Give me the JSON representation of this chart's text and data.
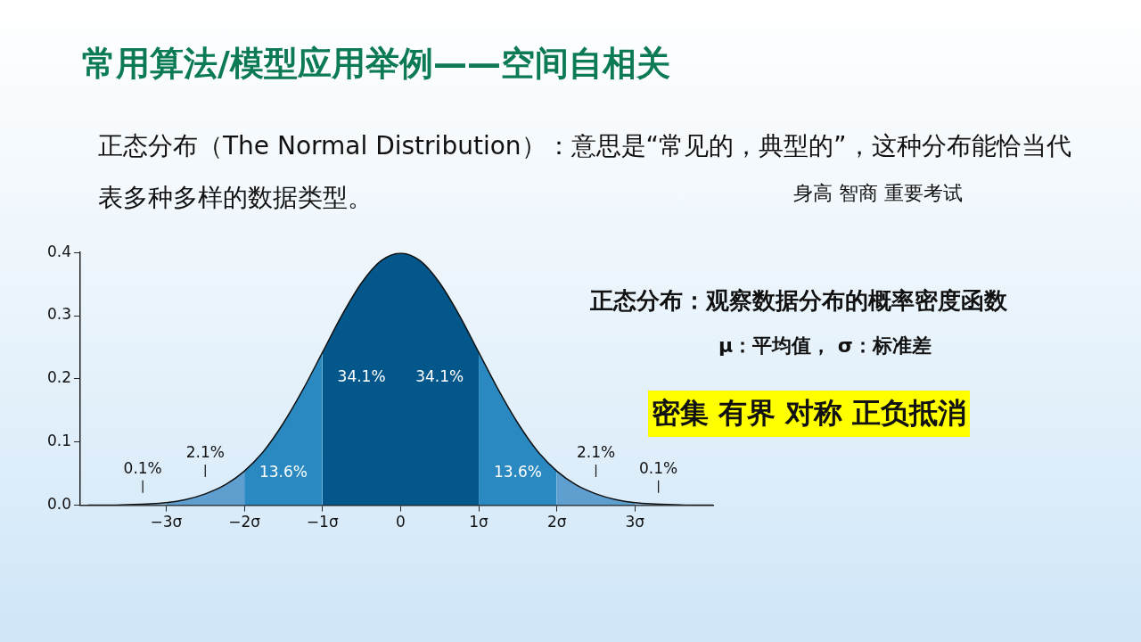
{
  "chart_data": {
    "type": "area",
    "title": "常用算法/模型应用举例——空间自相关",
    "subtitle": "正态分布（The Normal Distribution）：意思是“常见的，典型的”，这种分布能恰当代表多种多样的数据类型。",
    "xlim": [
      -4.1,
      4
    ],
    "ylim": [
      0,
      0.4
    ],
    "xticks": [
      {
        "value": -3,
        "label": "−3σ"
      },
      {
        "value": -2,
        "label": "−2σ"
      },
      {
        "value": -1,
        "label": "−1σ"
      },
      0,
      {
        "value": 1,
        "label": "1σ"
      },
      {
        "value": 2,
        "label": "2σ"
      },
      {
        "value": 3,
        "label": "3σ"
      }
    ],
    "yticks": [
      {
        "value": 0,
        "label": "0.0"
      },
      0.1,
      0.2,
      0.3,
      0.4
    ],
    "grid": false,
    "legend": false,
    "marker": "none",
    "series": [
      {
        "color": "#8fb9dc",
        "x": [
          -4,
          -3.75,
          -3.5,
          -3.25,
          -3
        ],
        "values": [
          0.0,
          0.0,
          0.001,
          0.002,
          0.004
        ]
      },
      {
        "color": "#5f9fd0",
        "x": [
          -3,
          -2.75,
          -2.5,
          -2.25,
          -2
        ],
        "values": [
          0.004,
          0.009,
          0.018,
          0.032,
          0.054
        ]
      },
      {
        "color": "#2a89c0",
        "x": [
          -2,
          -1.75,
          -1.5,
          -1.25,
          -1
        ],
        "values": [
          0.054,
          0.086,
          0.13,
          0.183,
          0.242
        ]
      },
      {
        "color": "#04578b",
        "x": [
          -1,
          -0.75,
          -0.5,
          -0.25,
          0,
          0.25,
          0.5,
          0.75,
          1
        ],
        "values": [
          0.242,
          0.301,
          0.352,
          0.387,
          0.399,
          0.387,
          0.352,
          0.301,
          0.242
        ]
      },
      {
        "color": "#2a89c0",
        "x": [
          1,
          1.25,
          1.5,
          1.75,
          2
        ],
        "values": [
          0.242,
          0.183,
          0.13,
          0.086,
          0.054
        ]
      },
      {
        "color": "#5f9fd0",
        "x": [
          2,
          2.25,
          2.5,
          2.75,
          3
        ],
        "values": [
          0.054,
          0.032,
          0.018,
          0.009,
          0.004
        ]
      },
      {
        "color": "#8fb9dc",
        "x": [
          3,
          3.25,
          3.5,
          3.75,
          4
        ],
        "values": [
          0.004,
          0.002,
          0.001,
          0.0,
          0.0
        ]
      },
      {
        "type": "line",
        "color": "#111111",
        "x": [
          -4,
          -3.75,
          -3.5,
          -3.25,
          -3,
          -2.75,
          -2.5,
          -2.25,
          -2,
          -1.75,
          -1.5,
          -1.25,
          -1,
          -0.75,
          -0.5,
          -0.25,
          0,
          0.25,
          0.5,
          0.75,
          1,
          1.25,
          1.5,
          1.75,
          2,
          2.25,
          2.5,
          2.75,
          3,
          3.25,
          3.5,
          3.75,
          4
        ],
        "values": [
          0.0,
          0.0,
          0.001,
          0.002,
          0.004,
          0.009,
          0.018,
          0.032,
          0.054,
          0.086,
          0.13,
          0.183,
          0.242,
          0.301,
          0.352,
          0.387,
          0.399,
          0.387,
          0.352,
          0.301,
          0.242,
          0.183,
          0.13,
          0.086,
          0.054,
          0.032,
          0.018,
          0.009,
          0.004,
          0.002,
          0.001,
          0.0,
          0.0
        ]
      }
    ],
    "annotations": [
      "34.1%",
      "34.1%",
      "13.6%",
      "13.6%",
      "2.1%",
      "2.1%",
      "0.1%",
      "0.1%",
      "身高  智商  重要考试",
      "正态分布：观察数据分布的概率密度函数",
      "μ：平均值， σ：标准差",
      "密集  有界  对称   正负抵消"
    ]
  }
}
